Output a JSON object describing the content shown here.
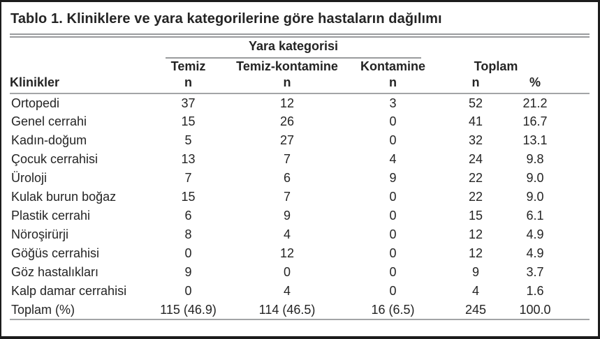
{
  "title": "Tablo 1. Kliniklere ve yara kategorilerine göre hastaların dağılımı",
  "header": {
    "group_label": "Yara kategorisi",
    "row_dim_label": "Klinikler",
    "category_columns": [
      {
        "label": "Temiz",
        "unit": "n"
      },
      {
        "label": "Temiz-kontamine",
        "unit": "n"
      },
      {
        "label": "Kontamine",
        "unit": "n"
      }
    ],
    "total_group": {
      "label": "Toplam",
      "unit_n": "n",
      "unit_pct": "%"
    }
  },
  "rows": [
    {
      "clinic": "Ortopedi",
      "temiz_n": "37",
      "temiz_kontamine_n": "12",
      "kontamine_n": "3",
      "toplam_n": "52",
      "toplam_pct": "21.2"
    },
    {
      "clinic": "Genel cerrahi",
      "temiz_n": "15",
      "temiz_kontamine_n": "26",
      "kontamine_n": "0",
      "toplam_n": "41",
      "toplam_pct": "16.7"
    },
    {
      "clinic": "Kadın-doğum",
      "temiz_n": "5",
      "temiz_kontamine_n": "27",
      "kontamine_n": "0",
      "toplam_n": "32",
      "toplam_pct": "13.1"
    },
    {
      "clinic": "Çocuk cerrahisi",
      "temiz_n": "13",
      "temiz_kontamine_n": "7",
      "kontamine_n": "4",
      "toplam_n": "24",
      "toplam_pct": "9.8"
    },
    {
      "clinic": "Üroloji",
      "temiz_n": "7",
      "temiz_kontamine_n": "6",
      "kontamine_n": "9",
      "toplam_n": "22",
      "toplam_pct": "9.0"
    },
    {
      "clinic": "Kulak burun boğaz",
      "temiz_n": "15",
      "temiz_kontamine_n": "7",
      "kontamine_n": "0",
      "toplam_n": "22",
      "toplam_pct": "9.0"
    },
    {
      "clinic": "Plastik cerrahi",
      "temiz_n": "6",
      "temiz_kontamine_n": "9",
      "kontamine_n": "0",
      "toplam_n": "15",
      "toplam_pct": "6.1"
    },
    {
      "clinic": "Nöroşirürji",
      "temiz_n": "8",
      "temiz_kontamine_n": "4",
      "kontamine_n": "0",
      "toplam_n": "12",
      "toplam_pct": "4.9"
    },
    {
      "clinic": "Göğüs cerrahisi",
      "temiz_n": "0",
      "temiz_kontamine_n": "12",
      "kontamine_n": "0",
      "toplam_n": "12",
      "toplam_pct": "4.9"
    },
    {
      "clinic": "Göz hastalıkları",
      "temiz_n": "9",
      "temiz_kontamine_n": "0",
      "kontamine_n": "0",
      "toplam_n": "9",
      "toplam_pct": "3.7"
    },
    {
      "clinic": "Kalp damar cerrahisi",
      "temiz_n": "0",
      "temiz_kontamine_n": "4",
      "kontamine_n": "0",
      "toplam_n": "4",
      "toplam_pct": "1.6"
    }
  ],
  "footer": {
    "clinic": "Toplam (%)",
    "temiz_n": "115 (46.9)",
    "temiz_kontamine_n": "114 (46.5)",
    "kontamine_n": "16 (6.5)",
    "toplam_n": "245",
    "toplam_pct": "100.0"
  },
  "colors": {
    "frame_border": "#1c1c1c",
    "rule_gray": "#9b9d9f",
    "text": "#242424"
  }
}
